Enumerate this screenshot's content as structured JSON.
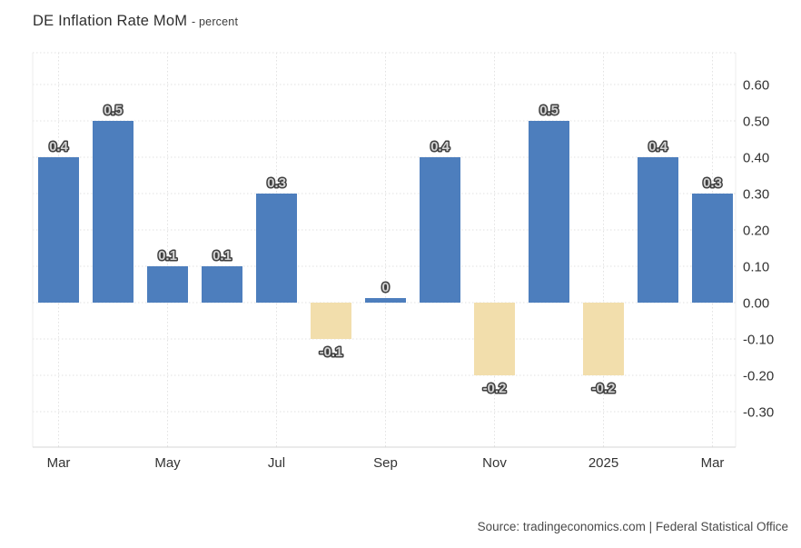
{
  "page": {
    "source_text": "Source: tradingeconomics.com | Federal Statistical Office"
  },
  "chart_data": {
    "type": "bar",
    "title": "DE Inflation Rate MoM",
    "subtitle": "- percent",
    "unit": "percent",
    "values": [
      0.4,
      0.5,
      0.1,
      0.1,
      0.3,
      -0.1,
      0,
      0.4,
      -0.2,
      0.5,
      -0.2,
      0.4,
      0.3
    ],
    "bar_value_labels": [
      "0.4",
      "0.5",
      "0.1",
      "0.1",
      "0.3",
      "-0.1",
      "0",
      "0.4",
      "-0.2",
      "0.5",
      "-0.2",
      "0.4",
      "0.3"
    ],
    "x_tick_labels": [
      {
        "index": 0,
        "label": "Mar"
      },
      {
        "index": 2,
        "label": "May"
      },
      {
        "index": 4,
        "label": "Jul"
      },
      {
        "index": 6,
        "label": "Sep"
      },
      {
        "index": 8,
        "label": "Nov"
      },
      {
        "index": 10,
        "label": "2025"
      },
      {
        "index": 12,
        "label": "Mar"
      }
    ],
    "y_ticks": [
      {
        "value": 0.6,
        "label": "0.60"
      },
      {
        "value": 0.5,
        "label": "0.50"
      },
      {
        "value": 0.4,
        "label": "0.40"
      },
      {
        "value": 0.3,
        "label": "0.30"
      },
      {
        "value": 0.2,
        "label": "0.20"
      },
      {
        "value": 0.1,
        "label": "0.10"
      },
      {
        "value": 0.0,
        "label": "0.00"
      },
      {
        "value": -0.1,
        "label": "-0.10"
      },
      {
        "value": -0.2,
        "label": "-0.20"
      },
      {
        "value": -0.3,
        "label": "-0.30"
      }
    ],
    "ylim": [
      -0.4,
      0.69
    ],
    "grid": "dotted",
    "legend": "none",
    "colors": {
      "positive_bar": "#4d7ebd",
      "negative_bar": "#f2deac",
      "axis_text": "#333333",
      "value_label_fill": "#d2d2d2",
      "value_label_outline": "#3f3f3f",
      "grid_line": "#e2e2e2"
    }
  }
}
